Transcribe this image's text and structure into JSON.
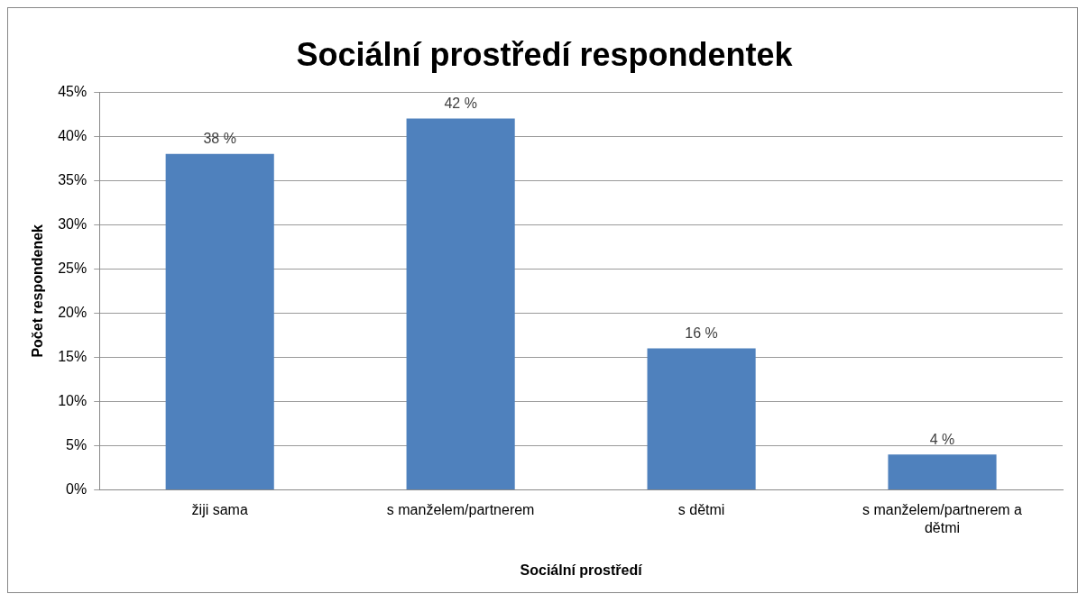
{
  "chart_data": {
    "type": "bar",
    "title": "Sociální prostředí respondentek",
    "xlabel": "Sociální prostředí",
    "ylabel": "Počet respondenek",
    "categories": [
      "žiji sama",
      "s manželem/partnerem",
      "s dětmi",
      "s manželem/partnerem a dětmi"
    ],
    "values": [
      38,
      42,
      16,
      4
    ],
    "color": "#4f81bd",
    "value_labels": [
      "38 %",
      "42 %",
      "16 %",
      "4 %"
    ],
    "ylim": [
      0,
      45
    ],
    "yticks": [
      {
        "value": 0,
        "label": "0%"
      },
      {
        "value": 5,
        "label": "5%"
      },
      {
        "value": 10,
        "label": "10%"
      },
      {
        "value": 15,
        "label": "15%"
      },
      {
        "value": 20,
        "label": "20%"
      },
      {
        "value": 25,
        "label": "25%"
      },
      {
        "value": 30,
        "label": "30%"
      },
      {
        "value": 35,
        "label": "35%"
      },
      {
        "value": 40,
        "label": "40%"
      },
      {
        "value": 45,
        "label": "45%"
      }
    ],
    "grid": "y",
    "legend": false
  }
}
